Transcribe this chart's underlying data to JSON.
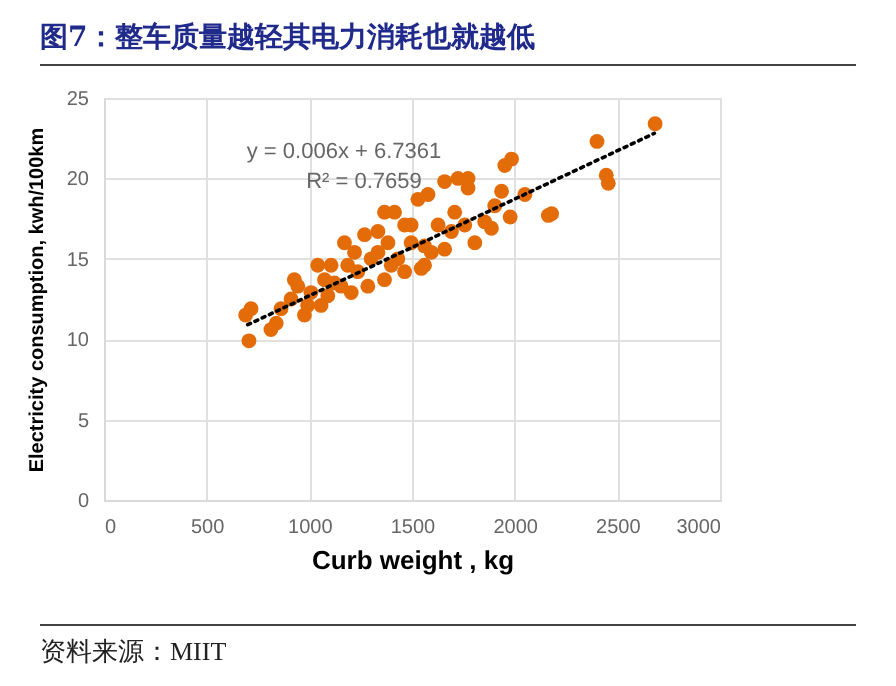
{
  "chart_data": {
    "type": "scatter",
    "title": "图7：整车质量越轻其电力消耗也就越低",
    "xlabel": "Curb weight , kg",
    "ylabel": "Electricity consumption, kwh/100km",
    "annotations": [
      "y = 0.006x + 6.7361",
      "R² = 0.7659",
      "资料来源：MIIT"
    ],
    "xlim": [
      0,
      3000
    ],
    "xticks": [
      0,
      500,
      1000,
      1500,
      2000,
      2500,
      3000
    ],
    "ylim": [
      0,
      25
    ],
    "yticks": [
      0,
      5,
      10,
      15,
      20,
      25
    ],
    "grid": true,
    "marker": "circle",
    "series": [
      {
        "color": "#e36c09",
        "x": [
          706,
          690,
          716,
          813,
          839,
          862,
          911,
          927,
          976,
          1008,
          1041,
          1090,
          1122,
          1171,
          1187,
          1220,
          1269,
          1301,
          1334,
          1366,
          1399,
          1415,
          1464,
          1496,
          1529,
          1578,
          1561,
          1627,
          1659,
          1724,
          1773,
          1773,
          1708,
          1757,
          1806,
          1854,
          1903,
          1936,
          1952,
          1985,
          1978,
          2050,
          2164,
          2180,
          2401,
          2446,
          2456,
          2684,
          944,
          992,
          1074,
          1106,
          1155,
          1236,
          1285,
          1334,
          1431,
          1464,
          1545,
          1594,
          1659,
          1692,
          1561,
          1496,
          1383,
          1204,
          1057,
          1366,
          1887
        ],
        "values": [
          9.9,
          11.5,
          11.9,
          10.6,
          11.0,
          11.9,
          12.5,
          13.7,
          11.5,
          12.9,
          14.6,
          12.7,
          13.5,
          16.0,
          14.6,
          15.4,
          16.5,
          15.0,
          16.7,
          13.7,
          14.6,
          17.9,
          17.1,
          16.0,
          18.7,
          19.0,
          14.6,
          17.1,
          19.8,
          20.0,
          20.0,
          19.4,
          17.9,
          17.1,
          16.0,
          17.3,
          18.3,
          19.2,
          20.8,
          21.2,
          17.6,
          19.0,
          17.7,
          17.8,
          22.3,
          20.2,
          19.7,
          23.4,
          13.3,
          12.1,
          13.7,
          14.6,
          13.3,
          14.2,
          13.3,
          15.4,
          15.0,
          14.2,
          14.4,
          15.4,
          15.6,
          16.7,
          15.8,
          17.1,
          16.0,
          12.9,
          12.1,
          17.9,
          16.9
        ]
      },
      {
        "type": "line",
        "color": "#000000",
        "line_style": "dotted",
        "marker": "none",
        "x": [
          700,
          2680
        ],
        "values": [
          10.9,
          22.8
        ]
      }
    ]
  }
}
